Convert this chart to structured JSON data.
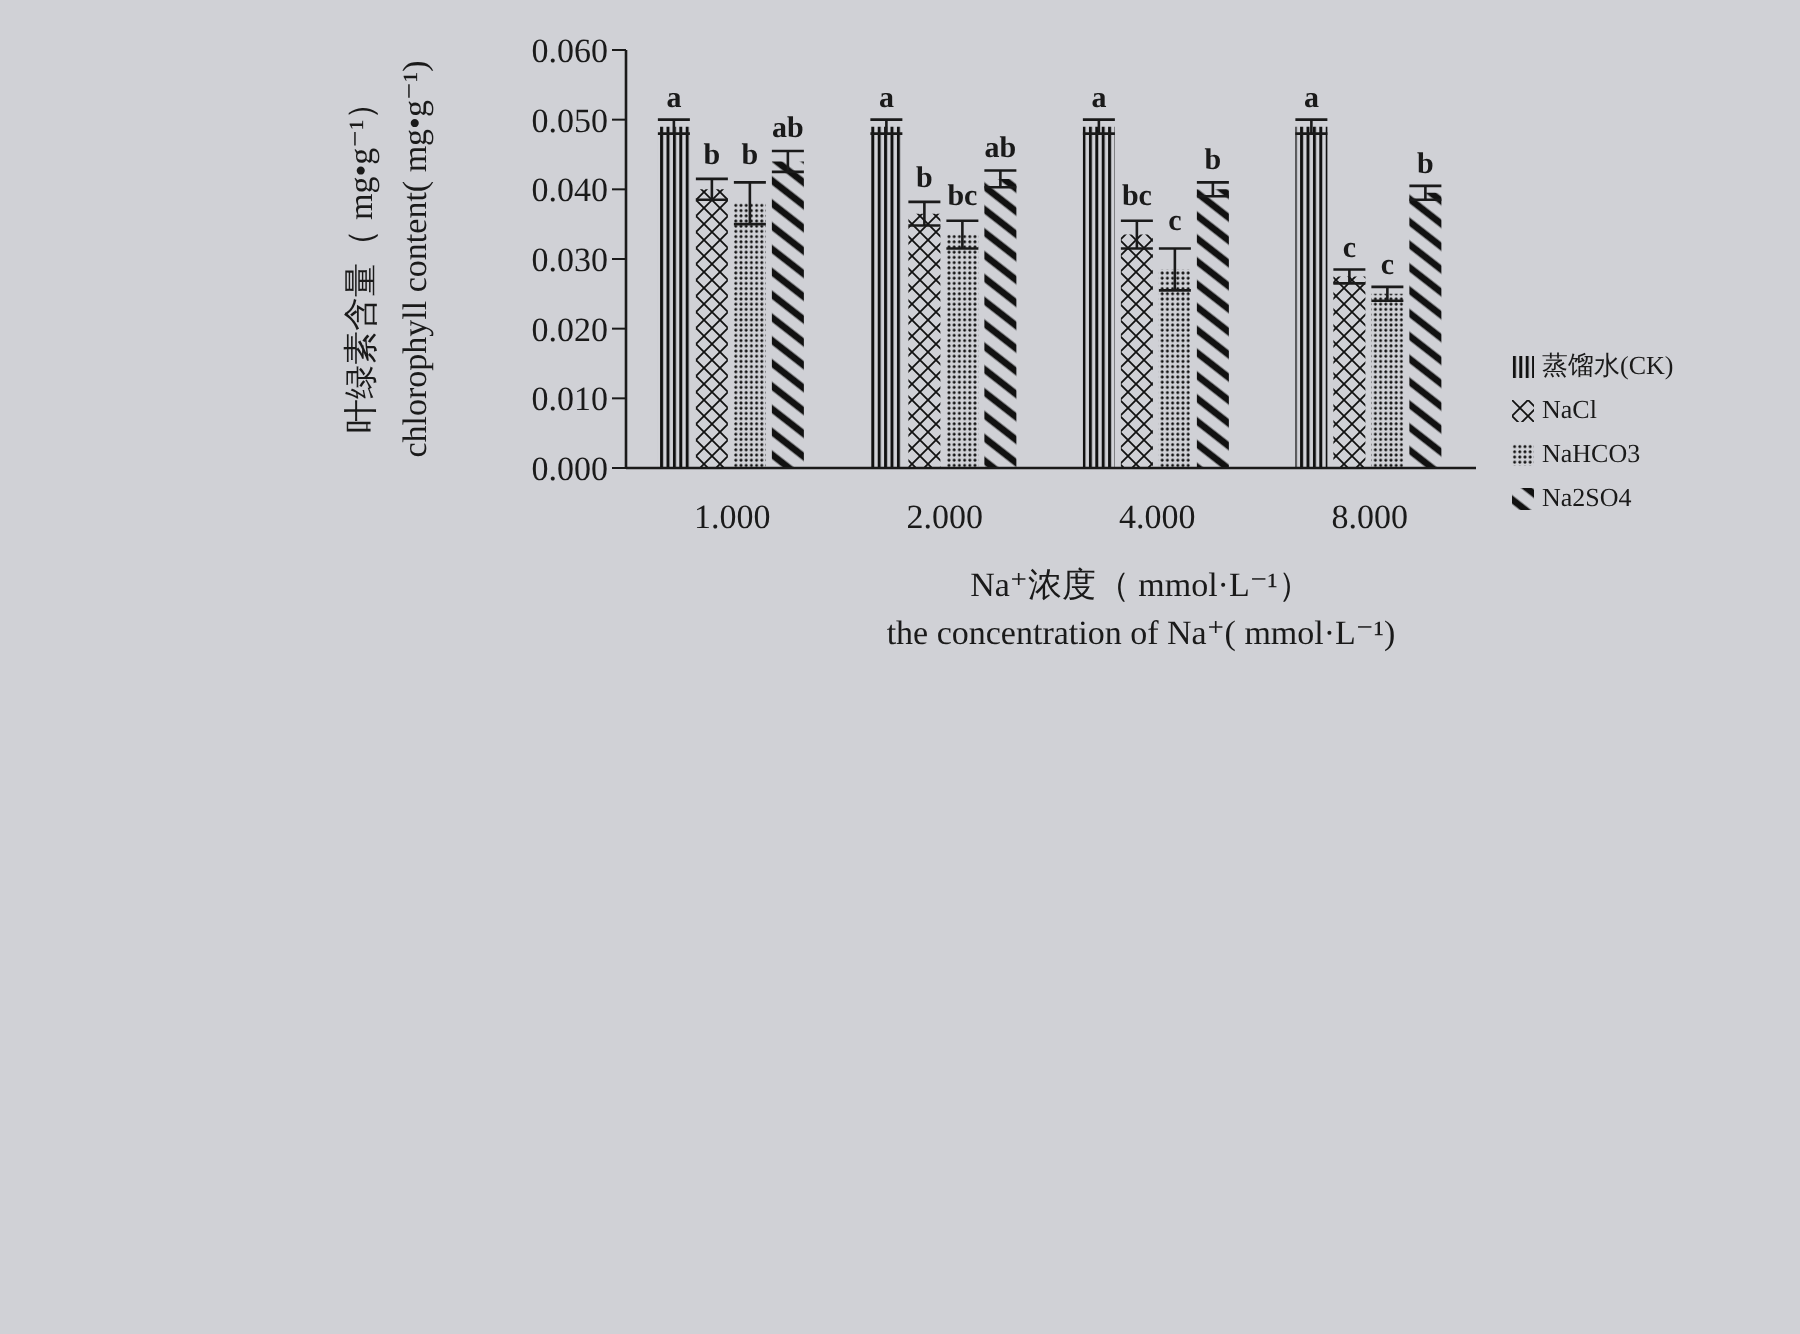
{
  "chart_data": {
    "type": "bar",
    "categories": [
      "1.000",
      "2.000",
      "4.000",
      "8.000"
    ],
    "xlabel": "Na⁺浓度（ mmol·L⁻¹）\nthe concentration of Na⁺( mmol·L⁻¹)",
    "ylabel": "叶绿素含量（ mg•g⁻¹）\nchlorophyll content( mg•g⁻¹)",
    "series": [
      {
        "name": "蒸馏水(CK)",
        "color": "#111111",
        "values": [
          0.049,
          0.049,
          0.049,
          0.049
        ],
        "errors": [
          0.001,
          0.001,
          0.001,
          0.001
        ],
        "value_labels": [
          "a",
          "a",
          "a",
          "a"
        ]
      },
      {
        "name": "NaCl",
        "color": "#111111",
        "values": [
          0.04,
          0.0365,
          0.0335,
          0.0275
        ],
        "errors": [
          0.0015,
          0.0017,
          0.002,
          0.001
        ],
        "value_labels": [
          "b",
          "b",
          "bc",
          "c"
        ]
      },
      {
        "name": "NaHCO3",
        "color": "#111111",
        "values": [
          0.038,
          0.0335,
          0.0285,
          0.025
        ],
        "errors": [
          0.003,
          0.002,
          0.003,
          0.001
        ],
        "value_labels": [
          "b",
          "bc",
          "c",
          "c"
        ]
      },
      {
        "name": "Na2SO4",
        "color": "#111111",
        "values": [
          0.044,
          0.0415,
          0.04,
          0.0395
        ],
        "errors": [
          0.0015,
          0.0012,
          0.001,
          0.001
        ],
        "value_labels": [
          "ab",
          "ab",
          "b",
          "b"
        ]
      }
    ],
    "ylim": [
      0,
      0.06
    ],
    "yticks": [
      {
        "value": 0,
        "label": "0.000"
      },
      {
        "value": 0.01,
        "label": "0.010"
      },
      {
        "value": 0.02,
        "label": "0.020"
      },
      {
        "value": 0.03,
        "label": "0.030"
      },
      {
        "value": 0.04,
        "label": "0.040"
      },
      {
        "value": 0.05,
        "label": "0.050"
      },
      {
        "value": 0.06,
        "label": "0.060"
      }
    ],
    "legend": "right",
    "grid": false
  }
}
